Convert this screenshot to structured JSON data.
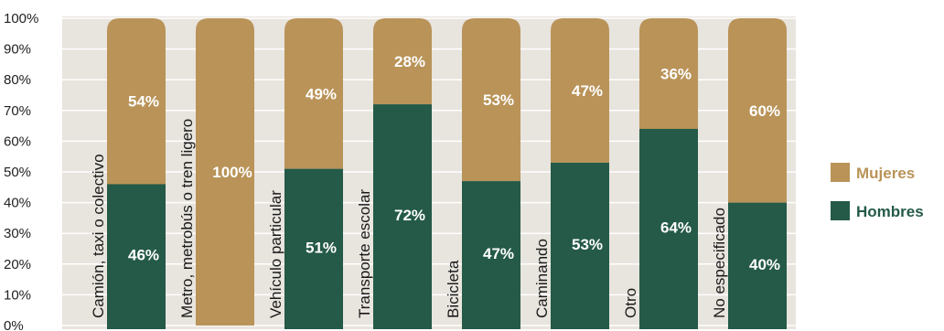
{
  "chart_data": {
    "type": "bar",
    "stacked": true,
    "percent": true,
    "categories": [
      "Camión, taxi o colectivo",
      "Metro, metrobús o tren ligero",
      "Vehículo particular",
      "Transporte escolar",
      "Bicicleta",
      "Caminando",
      "Otro",
      "No especificado"
    ],
    "series": [
      {
        "name": "Hombres",
        "color": "#245a47",
        "values": [
          46,
          0,
          51,
          72,
          47,
          53,
          64,
          40
        ]
      },
      {
        "name": "Mujeres",
        "color": "#b99358",
        "values": [
          54,
          100,
          49,
          28,
          53,
          47,
          36,
          60
        ]
      }
    ],
    "data_labels": {
      "Hombres": [
        "46%",
        "",
        "51%",
        "72%",
        "47%",
        "53%",
        "64%",
        "40%"
      ],
      "Mujeres": [
        "54%",
        "100%",
        "49%",
        "28%",
        "53%",
        "47%",
        "36%",
        "60%"
      ]
    },
    "yticks": [
      "0%",
      "10%",
      "20%",
      "30%",
      "40%",
      "50%",
      "60%",
      "70%",
      "80%",
      "90%",
      "100%"
    ],
    "ylim": [
      0,
      100
    ],
    "legend": [
      {
        "name": "Mujeres",
        "color": "#b99358"
      },
      {
        "name": "Hombres",
        "color": "#245a47"
      }
    ],
    "legend_position": "right",
    "plot_background": "#e8e4de"
  }
}
